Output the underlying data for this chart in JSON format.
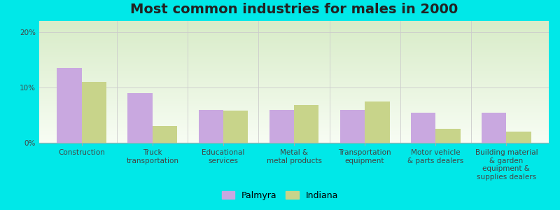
{
  "title": "Most common industries for males in 2000",
  "categories": [
    "Construction",
    "Truck\ntransportation",
    "Educational\nservices",
    "Metal &\nmetal products",
    "Transportation\nequipment",
    "Motor vehicle\n& parts dealers",
    "Building material\n& garden\nequipment &\nsupplies dealers"
  ],
  "palmyra": [
    13.5,
    9.0,
    6.0,
    6.0,
    6.0,
    5.5,
    5.5
  ],
  "indiana": [
    11.0,
    3.0,
    5.8,
    6.8,
    7.5,
    2.5,
    2.0
  ],
  "palmyra_color": "#c9a8e0",
  "indiana_color": "#c8d48a",
  "grad_top": "#d8ecc8",
  "grad_bottom": "#f8fdf4",
  "outer_bg": "#00e8e8",
  "ylim": [
    0,
    22
  ],
  "yticks": [
    0,
    10,
    20
  ],
  "bar_width": 0.35,
  "title_fontsize": 14,
  "tick_fontsize": 7.5,
  "legend_fontsize": 9
}
